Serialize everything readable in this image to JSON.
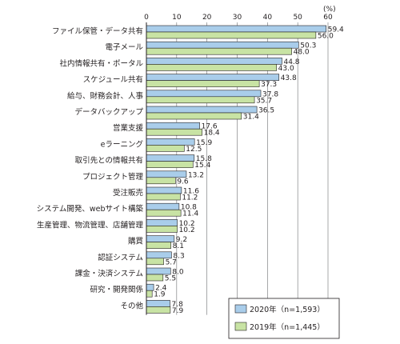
{
  "chart_data": {
    "type": "bar",
    "orientation": "horizontal",
    "unit": "(%)",
    "xlim": [
      0,
      60
    ],
    "ticks": [
      0,
      10,
      20,
      30,
      40,
      50,
      60
    ],
    "grid": true,
    "legend_position": "bottom-right",
    "categories": [
      "ファイル保管・データ共有",
      "電子メール",
      "社内情報共有・ポータル",
      "スケジュール共有",
      "給与、財務会計、人事",
      "データバックアップ",
      "営業支援",
      "eラーニング",
      "取引先との情報共有",
      "プロジェクト管理",
      "受注販売",
      "システム開発、webサイト構築",
      "生産管理、物流管理、店舗管理",
      "購買",
      "認証システム",
      "課金・決済システム",
      "研究・開発関係",
      "その他"
    ],
    "series": [
      {
        "name": "2020年（n=1,593）",
        "color": "#a9cdea",
        "values": [
          59.4,
          50.3,
          44.8,
          43.8,
          37.8,
          36.5,
          17.6,
          15.9,
          15.8,
          13.2,
          11.6,
          10.8,
          10.2,
          9.2,
          8.3,
          8.0,
          2.4,
          7.8
        ]
      },
      {
        "name": "2019年（n=1,445）",
        "color": "#c8e3a4",
        "values": [
          56.0,
          48.0,
          43.0,
          37.3,
          35.7,
          31.4,
          18.4,
          12.5,
          15.4,
          9.6,
          11.2,
          11.4,
          10.2,
          8.1,
          5.7,
          5.5,
          1.9,
          7.9
        ]
      }
    ]
  }
}
